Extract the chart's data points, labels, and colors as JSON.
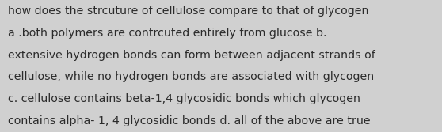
{
  "background_color": "#d0d0d0",
  "text_color": "#2b2b2b",
  "font_size": 10.2,
  "line1": "how does the strcuture of cellulose compare to that of glycogen",
  "line2": "a .both polymers are contrcuted entirely from glucose b.",
  "line3": "extensive hydrogen bonds can form between adjacent strands of",
  "line4": "cellulose, while no hydrogen bonds are associated with glycogen",
  "line5": "c. cellulose contains beta-1,4 glycosidic bonds which glycogen",
  "line6": "contains alpha- 1, 4 glycosidic bonds d. all of the above are true"
}
